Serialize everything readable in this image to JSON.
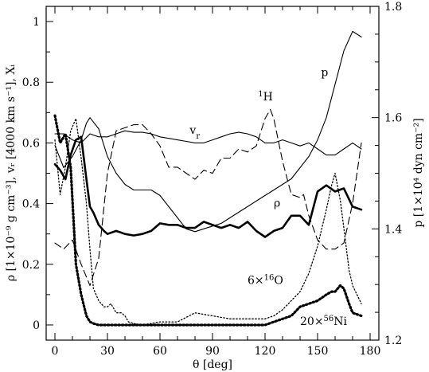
{
  "chart_data": {
    "type": "line",
    "x_axis": {
      "label": "θ [deg]",
      "range": [
        -5,
        185
      ],
      "ticks": [
        0,
        30,
        60,
        90,
        120,
        150,
        180
      ],
      "tick_labels": [
        "0",
        "30",
        "60",
        "90",
        "120",
        "150",
        "180"
      ]
    },
    "y_axis_left": {
      "label": "ρ [1×10⁻⁹ g cm⁻³], vᵣ [4000 km s⁻¹], Xᵢ",
      "range": [
        -0.05,
        1.05
      ],
      "ticks": [
        0,
        0.2,
        0.4,
        0.6,
        0.8,
        1
      ],
      "tick_labels": [
        "0",
        "0.2",
        "0.4",
        "0.6",
        "0.8",
        "1"
      ]
    },
    "y_axis_right": {
      "label": "p [1×10⁴ dyn cm⁻²]",
      "range": [
        1.2,
        1.8
      ],
      "ticks": [
        1.2,
        1.4,
        1.6,
        1.8
      ],
      "tick_labels": [
        "1.2",
        "1.4",
        "1.6",
        "1.8"
      ]
    },
    "series": [
      {
        "name": "p",
        "label_text": "p",
        "style": "solid-thin",
        "axis": "right",
        "x": [
          0,
          5,
          10,
          15,
          18,
          20,
          25,
          30,
          35,
          40,
          45,
          50,
          55,
          60,
          65,
          70,
          75,
          80,
          85,
          90,
          95,
          100,
          105,
          110,
          115,
          120,
          125,
          130,
          135,
          140,
          145,
          150,
          155,
          160,
          165,
          170,
          175
        ],
        "y": [
          1.55,
          1.51,
          1.53,
          1.56,
          1.59,
          1.6,
          1.58,
          1.53,
          1.5,
          1.48,
          1.47,
          1.47,
          1.47,
          1.46,
          1.44,
          1.42,
          1.4,
          1.395,
          1.4,
          1.405,
          1.41,
          1.42,
          1.43,
          1.44,
          1.45,
          1.46,
          1.47,
          1.48,
          1.49,
          1.51,
          1.53,
          1.56,
          1.6,
          1.66,
          1.72,
          1.755,
          1.745
        ]
      },
      {
        "name": "vr",
        "label_text": "vr",
        "style": "solid-thin",
        "axis": "left",
        "x": [
          0,
          5,
          10,
          15,
          20,
          25,
          30,
          35,
          40,
          45,
          50,
          55,
          60,
          65,
          70,
          75,
          80,
          85,
          90,
          95,
          100,
          105,
          110,
          115,
          120,
          125,
          130,
          135,
          140,
          145,
          150,
          155,
          160,
          165,
          170,
          175
        ],
        "y": [
          0.63,
          0.63,
          0.61,
          0.6,
          0.63,
          0.62,
          0.62,
          0.63,
          0.64,
          0.635,
          0.635,
          0.63,
          0.62,
          0.615,
          0.61,
          0.605,
          0.6,
          0.6,
          0.61,
          0.62,
          0.63,
          0.635,
          0.63,
          0.62,
          0.6,
          0.6,
          0.61,
          0.6,
          0.59,
          0.6,
          0.58,
          0.56,
          0.56,
          0.58,
          0.6,
          0.58
        ]
      },
      {
        "name": "1H",
        "label_text": "1H",
        "style": "dashed",
        "axis": "left",
        "x": [
          0,
          5,
          10,
          15,
          20,
          25,
          30,
          35,
          40,
          45,
          50,
          55,
          60,
          65,
          70,
          75,
          80,
          85,
          90,
          95,
          100,
          105,
          110,
          115,
          120,
          123,
          125,
          130,
          135,
          140,
          142,
          145,
          150,
          155,
          160,
          165,
          170,
          175
        ],
        "y": [
          0.27,
          0.25,
          0.28,
          0.2,
          0.13,
          0.22,
          0.5,
          0.64,
          0.65,
          0.66,
          0.66,
          0.63,
          0.59,
          0.52,
          0.52,
          0.5,
          0.48,
          0.51,
          0.5,
          0.55,
          0.55,
          0.58,
          0.57,
          0.59,
          0.68,
          0.71,
          0.68,
          0.54,
          0.43,
          0.42,
          0.43,
          0.36,
          0.28,
          0.25,
          0.25,
          0.27,
          0.4,
          0.6
        ]
      },
      {
        "name": "rho",
        "label_text": "ρ",
        "style": "solid-thick",
        "axis": "left",
        "x": [
          0,
          3,
          6,
          9,
          12,
          15,
          18,
          20,
          22,
          25,
          28,
          30,
          35,
          40,
          45,
          50,
          55,
          60,
          65,
          70,
          75,
          80,
          85,
          90,
          95,
          100,
          105,
          110,
          115,
          120,
          125,
          130,
          135,
          140,
          145,
          150,
          155,
          160,
          165,
          170,
          175
        ],
        "y": [
          0.53,
          0.51,
          0.48,
          0.56,
          0.61,
          0.62,
          0.48,
          0.39,
          0.37,
          0.33,
          0.31,
          0.3,
          0.31,
          0.3,
          0.295,
          0.3,
          0.31,
          0.335,
          0.33,
          0.33,
          0.32,
          0.32,
          0.34,
          0.33,
          0.32,
          0.33,
          0.32,
          0.34,
          0.31,
          0.29,
          0.31,
          0.32,
          0.36,
          0.36,
          0.33,
          0.44,
          0.46,
          0.44,
          0.45,
          0.39,
          0.38
        ]
      },
      {
        "name": "O16",
        "label_text": "6×16O",
        "style": "dotted-thin",
        "axis": "left",
        "x": [
          0,
          3,
          6,
          9,
          12,
          15,
          18,
          20,
          22,
          25,
          28,
          30,
          32,
          35,
          38,
          40,
          42,
          45,
          50,
          60,
          70,
          80,
          90,
          100,
          110,
          120,
          125,
          130,
          135,
          140,
          145,
          150,
          155,
          158,
          160,
          163,
          165,
          168,
          170,
          175
        ],
        "y": [
          0.61,
          0.43,
          0.52,
          0.64,
          0.68,
          0.55,
          0.4,
          0.25,
          0.12,
          0.08,
          0.06,
          0.06,
          0.07,
          0.04,
          0.04,
          0.03,
          0.01,
          0.005,
          0.0,
          0.01,
          0.01,
          0.04,
          0.03,
          0.02,
          0.02,
          0.02,
          0.03,
          0.05,
          0.08,
          0.11,
          0.17,
          0.26,
          0.38,
          0.46,
          0.5,
          0.41,
          0.32,
          0.18,
          0.13,
          0.07
        ]
      },
      {
        "name": "Ni56",
        "label_text": "20×56Ni",
        "style": "dotted-thick",
        "axis": "left",
        "x": [
          0,
          3,
          6,
          9,
          12,
          15,
          18,
          20,
          22,
          25,
          30,
          35,
          40,
          50,
          60,
          70,
          80,
          90,
          100,
          110,
          120,
          125,
          130,
          135,
          140,
          145,
          150,
          155,
          158,
          160,
          163,
          165,
          168,
          170,
          175
        ],
        "y": [
          0.69,
          0.6,
          0.63,
          0.52,
          0.2,
          0.1,
          0.03,
          0.01,
          0.005,
          0.0,
          0.0,
          0.0,
          0.0,
          0.0,
          0.0,
          0.0,
          0.0,
          0.0,
          0.0,
          0.0,
          0.0,
          0.01,
          0.02,
          0.03,
          0.06,
          0.07,
          0.08,
          0.1,
          0.11,
          0.11,
          0.13,
          0.12,
          0.07,
          0.04,
          0.03
        ]
      }
    ],
    "annotations": [
      {
        "series": "p",
        "text": "p",
        "x": 152,
        "y": 0.82
      },
      {
        "series": "1H",
        "text": "1H",
        "x": 116,
        "y": 0.74
      },
      {
        "series": "vr",
        "text": "vr",
        "x": 77,
        "y": 0.63
      },
      {
        "series": "rho",
        "text": "ρ",
        "x": 125,
        "y": 0.39
      },
      {
        "series": "O16",
        "text": "6×16O",
        "x": 110,
        "y": 0.135
      },
      {
        "series": "Ni56",
        "text": "20×56Ni",
        "x": 140,
        "y": 0.0
      }
    ],
    "grid": false,
    "legend": "none"
  }
}
